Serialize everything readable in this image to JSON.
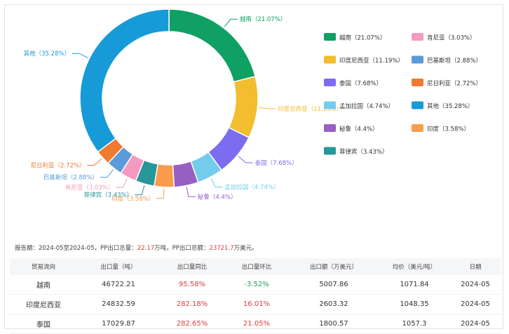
{
  "chart_data": {
    "type": "pie",
    "donut": true,
    "legend_position": "right",
    "series": [
      {
        "name": "越南",
        "value": 21.07,
        "color": "#10a064",
        "label": "越南（21.07%）"
      },
      {
        "name": "印度尼西亚",
        "value": 11.19,
        "color": "#f2bd2e",
        "label": "印度尼西亚（11.19%）"
      },
      {
        "name": "泰国",
        "value": 7.68,
        "color": "#7b6cf0",
        "label": "泰国（7.68%）"
      },
      {
        "name": "孟加拉国",
        "value": 4.74,
        "color": "#74ccec",
        "label": "孟加拉国（4.74%）"
      },
      {
        "name": "秘鲁",
        "value": 4.4,
        "color": "#9560c2",
        "label": "秘鲁（4.4%）"
      },
      {
        "name": "印度",
        "value": 3.58,
        "color": "#f89c4c",
        "label": "印度（3.58%）"
      },
      {
        "name": "菲律宾",
        "value": 3.43,
        "color": "#26979a",
        "label": "菲律宾（3.43%）"
      },
      {
        "name": "肯尼亚",
        "value": 3.03,
        "color": "#f49ac0",
        "label": "肯尼亚（3.03%）"
      },
      {
        "name": "巴基斯坦",
        "value": 2.88,
        "color": "#5b9bd9",
        "label": "巴基斯坦（2.88%）"
      },
      {
        "name": "尼日利亚",
        "value": 2.72,
        "color": "#ef7a30",
        "label": "尼日利亚（2.72%）"
      },
      {
        "name": "其他",
        "value": 35.28,
        "color": "#169ad8",
        "label": "其他（35.28%）"
      }
    ],
    "legend_order": [
      "越南",
      "肯尼亚",
      "印度尼西亚",
      "巴基斯坦",
      "泰国",
      "尼日利亚",
      "孟加拉国",
      "其他",
      "秘鲁",
      "印度",
      "菲律宾"
    ]
  },
  "report": {
    "prefix": "报告期：2024-05至2024-05，PP出口总量：",
    "volume": "22.17",
    "mid": "万吨，PP出口总额：",
    "amount": "23721.7",
    "suffix": "万美元。"
  },
  "table": {
    "headers": [
      "贸易流向",
      "出口量（吨）",
      "出口量同比",
      "出口量环比",
      "出口额（万美元）",
      "均价（美元/吨）",
      "日期"
    ],
    "rows": [
      {
        "dest": "越南",
        "qty": "46722.21",
        "yoy": "95.58%",
        "mom": "-3.52%",
        "amount": "5007.86",
        "price": "1071.84",
        "date": "2024-05"
      },
      {
        "dest": "印度尼西亚",
        "qty": "24832.59",
        "yoy": "282.18%",
        "mom": "16.01%",
        "amount": "2603.32",
        "price": "1048.35",
        "date": "2024-05"
      },
      {
        "dest": "泰国",
        "qty": "17029.87",
        "yoy": "282.65%",
        "mom": "21.05%",
        "amount": "1800.57",
        "price": "1057.3",
        "date": "2024-05"
      }
    ]
  }
}
